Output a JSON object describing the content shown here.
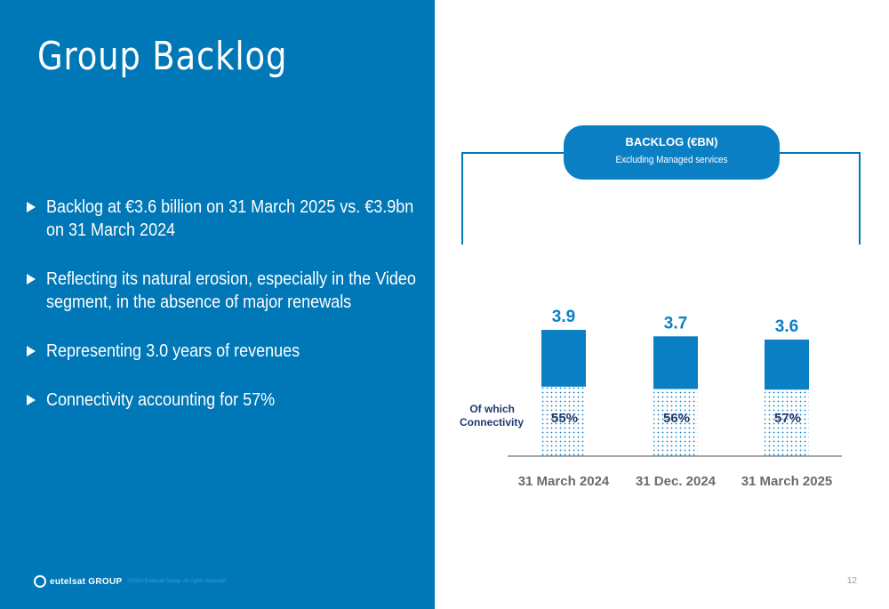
{
  "slide": {
    "title": "Group Backlog",
    "bullets": [
      "Backlog at €3.6 billion on 31 March 2025 vs. €3.9bn on 31 March 2024",
      "Reflecting its natural erosion, especially in the Video segment, in the absence of major renewals",
      "Representing 3.0 years of revenues",
      "Connectivity accounting for 57%"
    ],
    "footer": {
      "logo_text": "eutelsat GROUP",
      "copyright": "©2023 Eutelsat Group. All rights reserved",
      "page_number": "12"
    }
  },
  "callout": {
    "title": "BACKLOG (€BN)",
    "subtitle": "Excluding Managed services"
  },
  "colors": {
    "left_panel": "#0077b6",
    "bar": "#0b7fc4",
    "dots": "#0b7fc4",
    "pill": "#0b7fc4",
    "label_dark": "#1f3a6e",
    "tick_label": "#6b6b6b"
  },
  "chart_data": {
    "type": "bar",
    "categories": [
      "31 March 2024",
      "31 Dec. 2024",
      "31 March 2025"
    ],
    "values": [
      3.9,
      3.7,
      3.6
    ],
    "value_labels": [
      "3.9",
      "3.7",
      "3.6"
    ],
    "connectivity_share": [
      0.55,
      0.56,
      0.57
    ],
    "connectivity_labels": [
      "55%",
      "56%",
      "57%"
    ],
    "row_label": "Of which Connectivity",
    "title": "BACKLOG (€BN)",
    "xlabel": "",
    "ylabel": "",
    "ylim": [
      0,
      4.3
    ]
  }
}
